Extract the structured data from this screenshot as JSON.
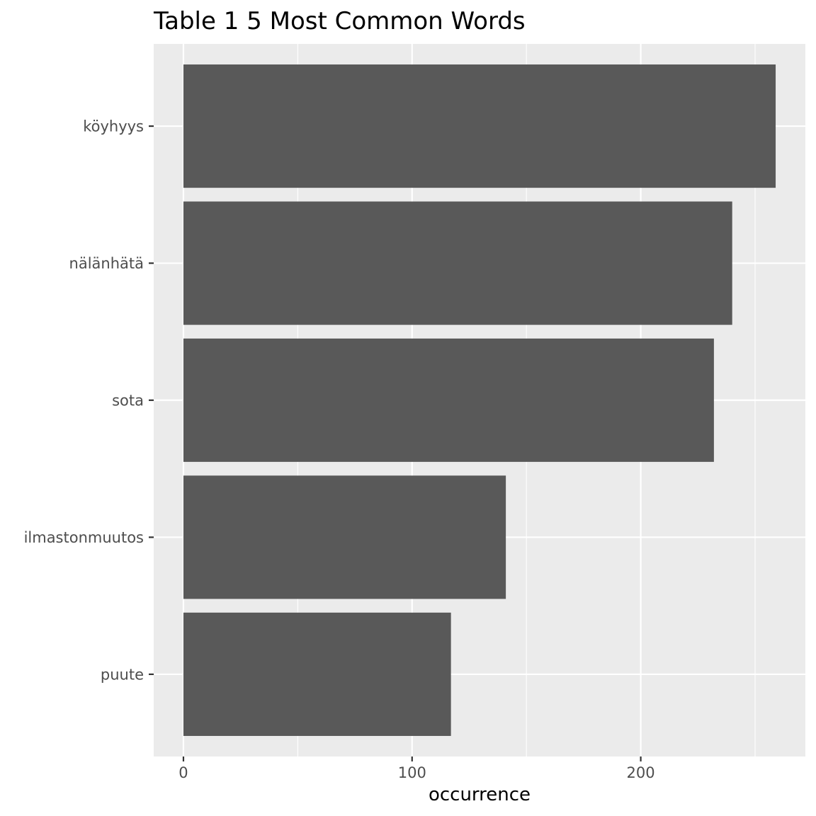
{
  "chart_data": {
    "type": "bar",
    "orientation": "horizontal",
    "title": "Table 1 5 Most Common Words",
    "xlabel": "occurrence",
    "ylabel": "",
    "categories": [
      "köyhyys",
      "nälänhätä",
      "sota",
      "ilmastonmuutos",
      "puute"
    ],
    "values": [
      259,
      240,
      232,
      141,
      117
    ],
    "xlim": [
      -13,
      272
    ],
    "x_ticks": [
      0,
      100,
      200
    ],
    "x_minor_ticks": [
      50,
      150,
      250
    ],
    "grid": true,
    "colors": {
      "bar": "#595959",
      "panel": "#ebebeb",
      "grid": "#ffffff",
      "tick": "#333333",
      "tick_label": "#4d4d4d"
    }
  }
}
